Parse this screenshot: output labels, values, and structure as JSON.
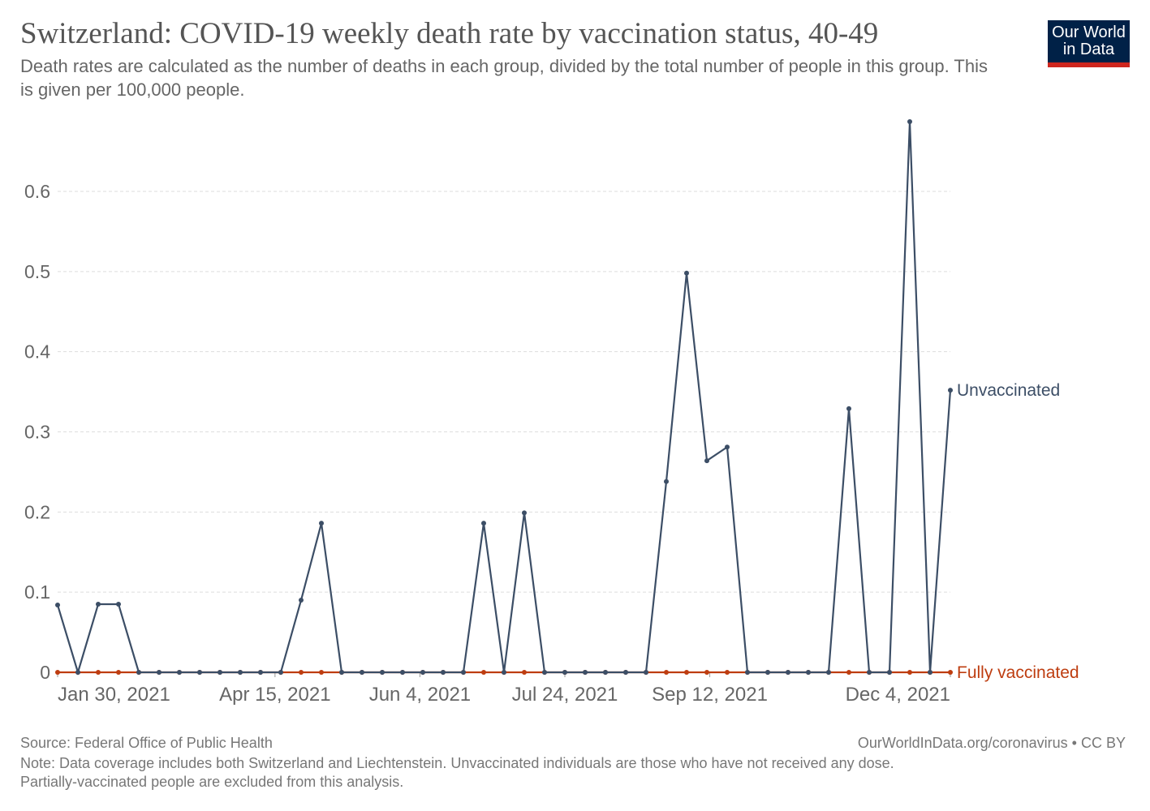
{
  "header": {
    "title": "Switzerland: COVID-19 weekly death rate by vaccination status, 40-49",
    "subtitle": "Death rates are calculated as the number of deaths in each group, divided by the total number of people in this group. This is given per 100,000 people.",
    "logo": "Our World in Data",
    "logo_line1": "Our World",
    "logo_line2": "in Data"
  },
  "footer": {
    "source": "Source: Federal Office of Public Health",
    "url": "OurWorldInData.org/coronavirus • CC BY",
    "note1": "Note: Data coverage includes both Switzerland and Liechtenstein. Unvaccinated individuals are those who have not received any dose.",
    "note2": "Partially-vaccinated people are excluded from this analysis."
  },
  "chart_data": {
    "type": "line",
    "grid": true,
    "ylim": [
      0,
      0.6
    ],
    "yticks": [
      0,
      0.1,
      0.2,
      0.3,
      0.4,
      0.5,
      0.6
    ],
    "xticks": [
      {
        "date": "2021-01-30",
        "label": "Jan 30, 2021"
      },
      {
        "date": "2021-04-15",
        "label": "Apr 15, 2021"
      },
      {
        "date": "2021-06-04",
        "label": "Jun 4, 2021"
      },
      {
        "date": "2021-07-24",
        "label": "Jul 24, 2021"
      },
      {
        "date": "2021-09-12",
        "label": "Sep 12, 2021"
      },
      {
        "date": "2021-12-04",
        "label": "Dec 4, 2021"
      }
    ],
    "x": [
      "2021-01-30",
      "2021-02-06",
      "2021-02-13",
      "2021-02-20",
      "2021-02-27",
      "2021-03-06",
      "2021-03-13",
      "2021-03-20",
      "2021-03-27",
      "2021-04-03",
      "2021-04-10",
      "2021-04-17",
      "2021-04-24",
      "2021-05-01",
      "2021-05-08",
      "2021-05-15",
      "2021-05-22",
      "2021-05-29",
      "2021-06-05",
      "2021-06-12",
      "2021-06-19",
      "2021-06-26",
      "2021-07-03",
      "2021-07-10",
      "2021-07-17",
      "2021-07-24",
      "2021-07-31",
      "2021-08-07",
      "2021-08-14",
      "2021-08-21",
      "2021-08-28",
      "2021-09-04",
      "2021-09-11",
      "2021-09-18",
      "2021-09-25",
      "2021-10-02",
      "2021-10-09",
      "2021-10-16",
      "2021-10-23",
      "2021-10-30",
      "2021-11-06",
      "2021-11-13",
      "2021-11-20",
      "2021-11-27",
      "2021-12-04"
    ],
    "series": [
      {
        "name": "Fully vaccinated",
        "color": "#be3d10",
        "values": [
          0,
          0,
          0,
          0,
          0,
          0,
          0,
          0,
          0,
          0,
          0,
          0,
          0,
          0,
          0,
          0,
          0,
          0,
          0,
          0,
          0,
          0,
          0,
          0,
          0,
          0,
          0,
          0,
          0,
          0,
          0,
          0,
          0,
          0,
          0,
          0,
          0,
          0,
          0,
          0,
          0,
          0,
          0,
          0,
          0
        ]
      },
      {
        "name": "Unvaccinated",
        "color": "#3c4e66",
        "values": [
          0.084,
          0,
          0.085,
          0.085,
          0,
          0,
          0,
          0,
          0,
          0,
          0,
          0,
          0.09,
          0.186,
          0,
          0,
          0,
          0,
          0,
          0,
          0,
          0.186,
          0,
          0.199,
          0,
          0,
          0,
          0,
          0,
          0,
          0.238,
          0.498,
          0.264,
          0.281,
          0,
          0,
          0,
          0,
          0,
          0.329,
          0,
          0,
          0.687,
          0,
          0.352
        ]
      }
    ]
  }
}
